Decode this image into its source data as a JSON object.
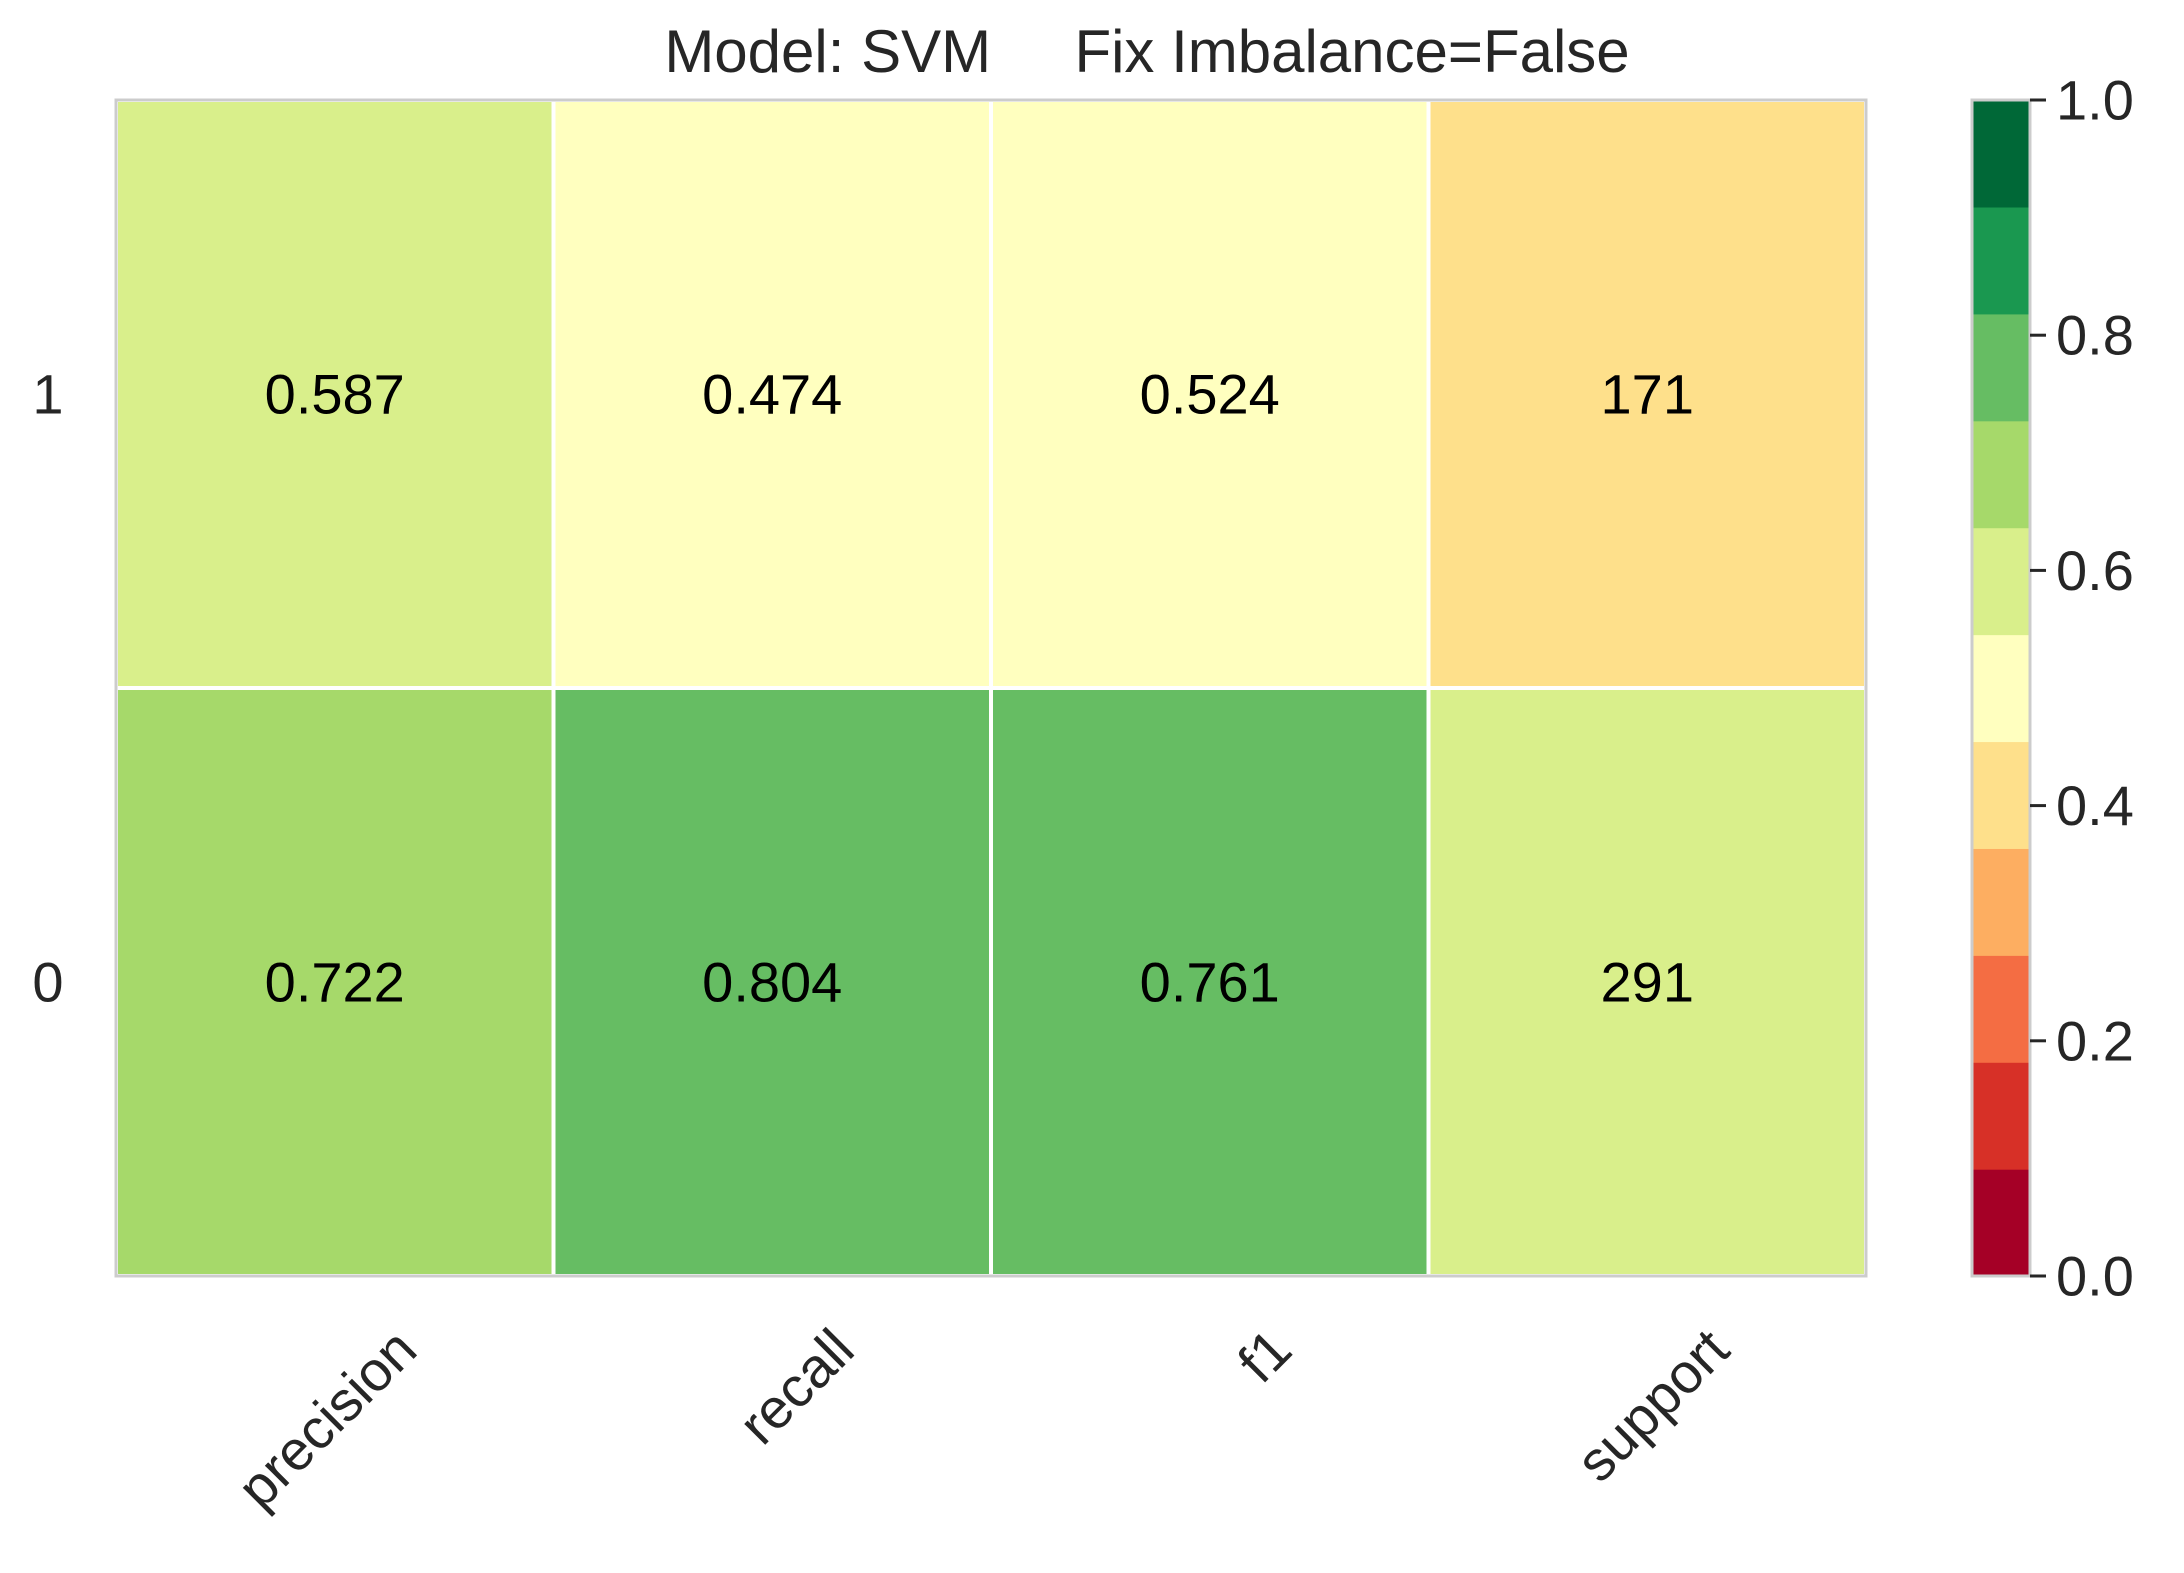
{
  "chart_data": {
    "type": "heatmap",
    "title": "Model: SVM     Fix Imbalance=False",
    "columns": [
      "precision",
      "recall",
      "f1",
      "support"
    ],
    "rows": [
      "1",
      "0"
    ],
    "values": [
      [
        0.587,
        0.474,
        0.524,
        171
      ],
      [
        0.722,
        0.804,
        0.761,
        291
      ]
    ],
    "cell_labels": [
      [
        "0.587",
        "0.474",
        "0.524",
        "171"
      ],
      [
        "0.722",
        "0.804",
        "0.761",
        "291"
      ]
    ],
    "color_values": [
      [
        0.587,
        0.474,
        0.524,
        0.37
      ],
      [
        0.722,
        0.804,
        0.761,
        0.63
      ]
    ],
    "colormap": {
      "name": "RdYlGn",
      "range": [
        0.0,
        1.0
      ],
      "bins": [
        "#a50026",
        "#d73027",
        "#f46d43",
        "#fdae61",
        "#fee08b",
        "#ffffbf",
        "#d9ef8b",
        "#a6d96a",
        "#66bd63",
        "#1a9850",
        "#006837"
      ]
    },
    "colorbar": {
      "ticks": [
        "0.0",
        "0.2",
        "0.4",
        "0.6",
        "0.8",
        "1.0"
      ],
      "tick_values": [
        0.0,
        0.2,
        0.4,
        0.6,
        0.8,
        1.0
      ]
    },
    "grid": false,
    "legend": "colorbar-right",
    "cell_border_color": "#ffffff",
    "frame_color": "#cccccc",
    "text_color": "#262626"
  }
}
